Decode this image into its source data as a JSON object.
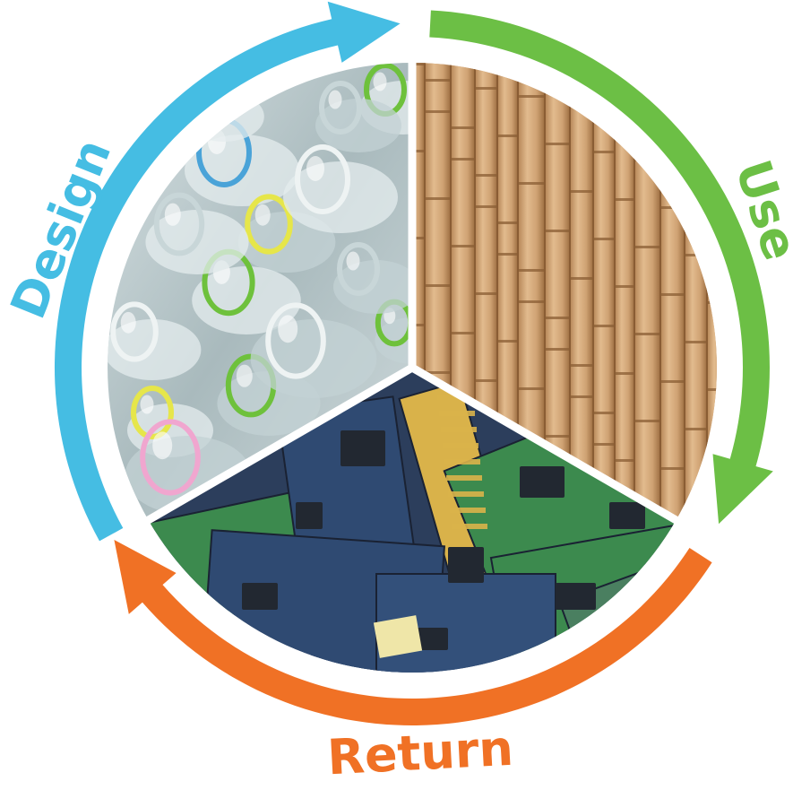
{
  "stages": [
    {
      "id": "design",
      "label": "Design",
      "color": "#45bde3",
      "image": "plastic-bottles",
      "image_colors": {
        "base": "#9fb3b6",
        "mid": "#c8d6d8",
        "light": "#eef3f3",
        "accent": "#6ec13c",
        "accent2": "#e6e64a",
        "pink": "#f0a6cf"
      }
    },
    {
      "id": "use",
      "label": "Use",
      "color": "#6cbf45",
      "image": "bamboo-wall",
      "image_colors": {
        "base": "#cd9e6e",
        "dark": "#8a5d34",
        "light": "#e8c598"
      }
    },
    {
      "id": "return",
      "label": "Return",
      "color": "#f07125",
      "image": "circuit-boards",
      "image_colors": {
        "base": "#2f4a72",
        "green": "#3c8a4e",
        "gold": "#d9b24a",
        "dark": "#1a2233",
        "chip": "#222831"
      }
    }
  ]
}
